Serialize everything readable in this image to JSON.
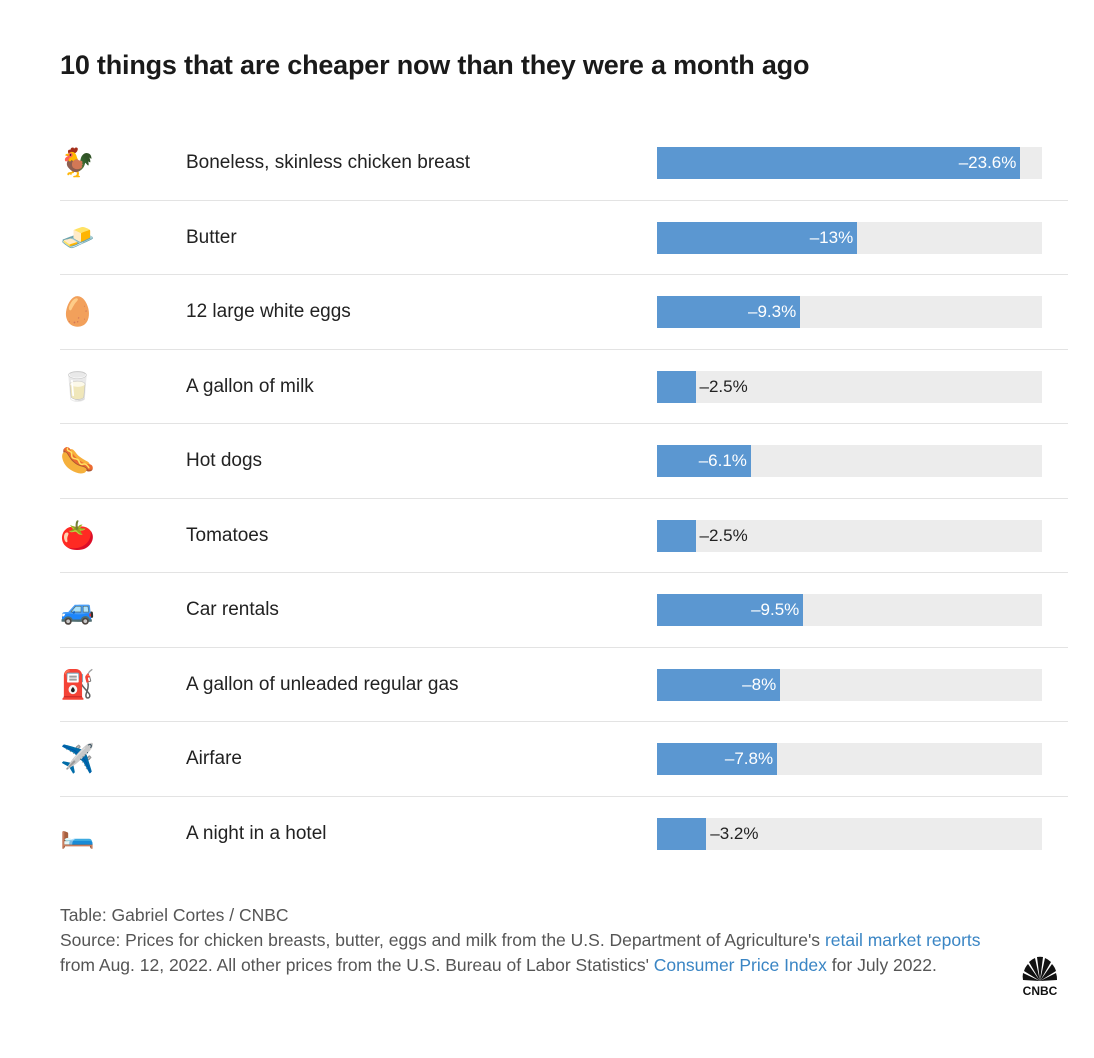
{
  "title": "10 things that are cheaper now than they were a month ago",
  "chart_data": {
    "type": "bar",
    "orientation": "horizontal",
    "title": "10 things that are cheaper now than they were a month ago",
    "categories": [
      "Boneless, skinless chicken breast",
      "Butter",
      "12 large white eggs",
      "A gallon of milk",
      "Hot dogs",
      "Tomatoes",
      "Car rentals",
      "A gallon of unleaded regular gas",
      "Airfare",
      "A night in a hotel"
    ],
    "values": [
      -23.6,
      -13,
      -9.3,
      -2.5,
      -6.1,
      -2.5,
      -9.5,
      -8,
      -7.8,
      -3.2
    ],
    "value_labels": [
      "–23.6%",
      "–13%",
      "–9.3%",
      "–2.5%",
      "–6.1%",
      "–2.5%",
      "–9.5%",
      "–8%",
      "–7.8%",
      "–3.2%"
    ],
    "icons": [
      "rooster-icon",
      "butter-icon",
      "egg-icon",
      "milk-glass-icon",
      "hot-dog-icon",
      "tomato-icon",
      "car-icon",
      "fuel-pump-icon",
      "airplane-icon",
      "bed-icon"
    ],
    "xlim": [
      0,
      -25
    ],
    "bar_color": "#5b97d1",
    "track_color": "#ececec"
  },
  "icon_glyphs": [
    "🐓",
    "🧈",
    "🥚",
    "🥛",
    "🌭",
    "🍅",
    "🚙",
    "⛽",
    "✈️",
    "🛏️"
  ],
  "footer": {
    "credit": "Table: Gabriel Cortes / CNBC",
    "source_prefix": "Source: Prices for chicken breasts, butter, eggs and milk from the U.S. Department of Agriculture's ",
    "link1": "retail market reports",
    "source_middle": " from Aug. 12, 2022. All other prices from the U.S. Bureau of Labor Statistics' ",
    "link2": "Consumer Price Index",
    "source_suffix": " for July 2022."
  },
  "logo_text": "CNBC",
  "link_color": "#3a85c4"
}
